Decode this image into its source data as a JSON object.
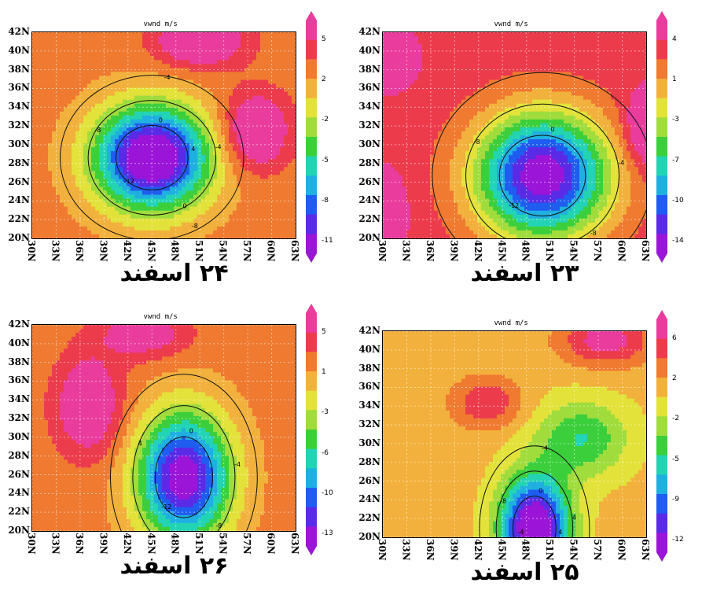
{
  "chart_data": [
    {
      "type": "heatmap",
      "title": "vwnd m/s",
      "caption": "۲۴ اسفند",
      "xlabels": [
        "30N",
        "33N",
        "36N",
        "39N",
        "42N",
        "45N",
        "48N",
        "51N",
        "54N",
        "57N",
        "60N",
        "63N"
      ],
      "ylabels": [
        "42N",
        "40N",
        "38N",
        "36N",
        "34N",
        "32N",
        "30N",
        "28N",
        "26N",
        "24N",
        "22N",
        "20N"
      ],
      "colorbar": [
        "5",
        "2",
        "-2",
        "-5",
        "-8",
        "-11"
      ],
      "contour_labels": [
        "0",
        "-4",
        "-8",
        "-12",
        "-8",
        "-4",
        "4",
        "0"
      ],
      "field": {
        "base": 1.5,
        "centers": [
          {
            "lon": 45,
            "lat": 29,
            "amp": -14,
            "sx": 5,
            "sy": 4
          },
          {
            "lon": 58,
            "lat": 32,
            "amp": 5,
            "sx": 3,
            "sy": 3
          },
          {
            "lon": 51,
            "lat": 42,
            "amp": 5,
            "sx": 4,
            "sy": 2
          }
        ]
      }
    },
    {
      "type": "heatmap",
      "title": "vwnd m/s",
      "caption": "۲۳ اسفند",
      "xlabels": [
        "30N",
        "33N",
        "36N",
        "39N",
        "42N",
        "45N",
        "48N",
        "51N",
        "54N",
        "57N",
        "60N",
        "63N"
      ],
      "ylabels": [
        "42N",
        "40N",
        "38N",
        "36N",
        "34N",
        "32N",
        "30N",
        "28N",
        "26N",
        "24N",
        "22N",
        "20N"
      ],
      "colorbar": [
        "4",
        "1",
        "-3",
        "-7",
        "-10",
        "-14"
      ],
      "contour_labels": [
        "0",
        "-4",
        "-8",
        "-12",
        "-8"
      ],
      "field": {
        "base": 2,
        "centers": [
          {
            "lon": 50,
            "lat": 27,
            "amp": -16,
            "sx": 6,
            "sy": 5
          },
          {
            "lon": 31,
            "lat": 40,
            "amp": 4,
            "sx": 2,
            "sy": 2
          },
          {
            "lon": 63,
            "lat": 32,
            "amp": 4,
            "sx": 2,
            "sy": 3
          },
          {
            "lon": 30,
            "lat": 23,
            "amp": 3,
            "sx": 2,
            "sy": 3
          }
        ]
      }
    },
    {
      "type": "heatmap",
      "title": "vwnd m/s",
      "caption": "۲۶ اسفند",
      "xlabels": [
        "30N",
        "33N",
        "36N",
        "39N",
        "42N",
        "45N",
        "48N",
        "51N",
        "54N",
        "57N",
        "60N",
        "63N"
      ],
      "ylabels": [
        "42N",
        "40N",
        "38N",
        "36N",
        "34N",
        "32N",
        "30N",
        "28N",
        "26N",
        "24N",
        "22N",
        "20N"
      ],
      "colorbar": [
        "5",
        "1",
        "-3",
        "-6",
        "-10",
        "-13"
      ],
      "contour_labels": [
        "0",
        "-4",
        "-8",
        "-12",
        "4"
      ],
      "field": {
        "base": 1,
        "centers": [
          {
            "lon": 49,
            "lat": 26,
            "amp": -14,
            "sx": 4,
            "sy": 5
          },
          {
            "lon": 37,
            "lat": 34,
            "amp": 5,
            "sx": 3,
            "sy": 4
          },
          {
            "lon": 44,
            "lat": 42,
            "amp": 4,
            "sx": 4,
            "sy": 2
          }
        ]
      }
    },
    {
      "type": "heatmap",
      "title": "vwnd m/s",
      "caption": "۲۵ اسفند",
      "xlabels": [
        "30N",
        "33N",
        "36N",
        "39N",
        "42N",
        "45N",
        "48N",
        "51N",
        "54N",
        "57N",
        "60N",
        "63N"
      ],
      "ylabels": [
        "42N",
        "40N",
        "38N",
        "36N",
        "34N",
        "32N",
        "30N",
        "28N",
        "26N",
        "24N",
        "22N",
        "20N"
      ],
      "colorbar": [
        "6",
        "2",
        "-2",
        "-5",
        "-9",
        "-12"
      ],
      "contour_labels": [
        "0",
        "4",
        "4",
        "-4",
        "-8",
        "-4"
      ],
      "field": {
        "base": 0.5,
        "centers": [
          {
            "lon": 49,
            "lat": 21,
            "amp": -14,
            "sx": 3,
            "sy": 4
          },
          {
            "lon": 43,
            "lat": 35,
            "amp": 4,
            "sx": 3,
            "sy": 2
          },
          {
            "lon": 58,
            "lat": 42,
            "amp": 5,
            "sx": 4,
            "sy": 2
          },
          {
            "lon": 55,
            "lat": 31,
            "amp": -5,
            "sx": 4,
            "sy": 3
          }
        ]
      }
    }
  ],
  "colors": {
    "scale": [
      "#9b15d8",
      "#5a2be6",
      "#1f5cf0",
      "#1fb0e0",
      "#22d4b4",
      "#3ccf3c",
      "#9fdc3c",
      "#e2e23a",
      "#f2b13c",
      "#ef7a30",
      "#ec3c4c",
      "#e93c9c"
    ]
  }
}
